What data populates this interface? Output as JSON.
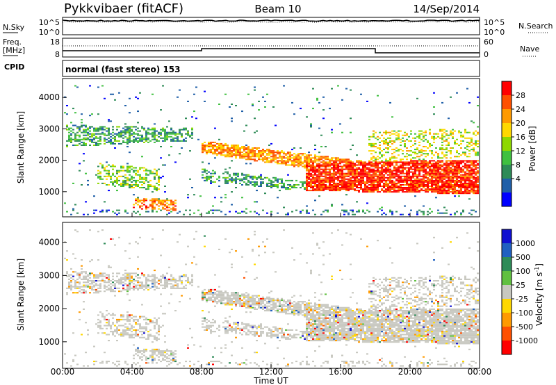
{
  "header": {
    "station": "Pykkvibaer (fitACF)",
    "beam": "Beam 10",
    "date": "14/Sep/2014"
  },
  "nsky_panel": {
    "left_label": "N.Sky",
    "left_ticks": [
      "10^5",
      "10^0"
    ],
    "right_ticks": [
      "10^5",
      "10^0"
    ],
    "right_label": "N.Search"
  },
  "freq_panel": {
    "left_label_1": "Freq.",
    "left_label_2": "[MHz]",
    "left_ticks": [
      "18",
      "8"
    ],
    "right_ticks": [
      "60",
      "0"
    ],
    "right_label": "Nave"
  },
  "cpid": {
    "label": "CPID",
    "text": "normal (fast stereo) 153"
  },
  "chart_data": [
    {
      "type": "heatmap",
      "name": "power",
      "ylabel": "Slant Range [km]",
      "y_ticks": [
        "4000",
        "3000",
        "2000",
        "1000"
      ],
      "ylim": [
        200,
        4600
      ],
      "colorbar": {
        "label": "Power [dB]",
        "ticks": [
          "28",
          "24",
          "20",
          "16",
          "12",
          "8",
          "4"
        ],
        "colors": [
          "#ff0000",
          "#ff5000",
          "#ff9a00",
          "#ffd800",
          "#8ed800",
          "#40c040",
          "#2e8b57",
          "#1f5fa8",
          "#0000ff"
        ]
      }
    },
    {
      "type": "heatmap",
      "name": "velocity",
      "ylabel": "Slant Range [km]",
      "y_ticks": [
        "4000",
        "3000",
        "2000",
        "1000"
      ],
      "ylim": [
        200,
        4600
      ],
      "colorbar": {
        "label": "Velocity [m s",
        "label_sup": "-1",
        "label_end": "]",
        "ticks": [
          "1000",
          "500",
          "100",
          "25",
          "-25",
          "-100",
          "-500",
          "-1000"
        ],
        "colors": [
          "#1010d0",
          "#2060c0",
          "#2e8b57",
          "#60c040",
          "#c8c8c0",
          "#ffd800",
          "#ff9a00",
          "#ff5000",
          "#ff0000"
        ]
      }
    }
  ],
  "x_axis": {
    "label": "Time UT",
    "ticks": [
      "00:00",
      "04:00",
      "08:00",
      "12:00",
      "16:00",
      "20:00",
      "00:00"
    ]
  },
  "colors": {
    "line": "#000000",
    "scatter_gray": "#c8c8c0"
  }
}
